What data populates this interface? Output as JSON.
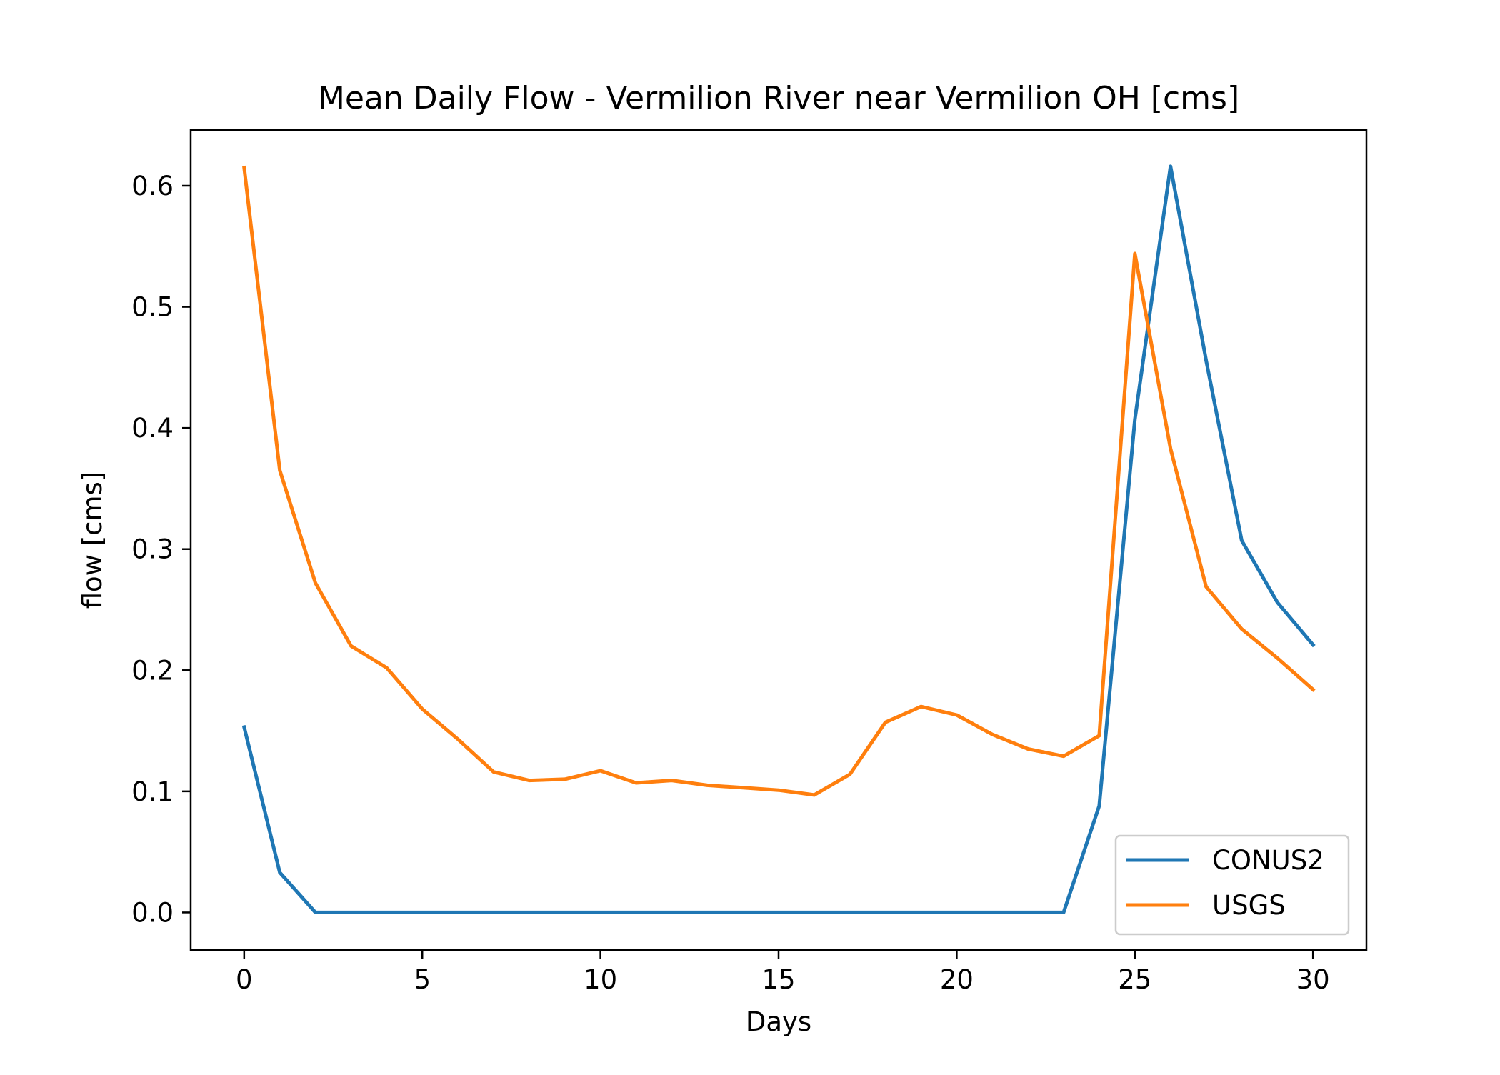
{
  "chart_data": {
    "type": "line",
    "title": "Mean Daily Flow - Vermilion River near Vermilion OH [cms]",
    "xlabel": "Days",
    "ylabel": "flow [cms]",
    "xlim": [
      -1.5,
      31.5
    ],
    "ylim": [
      -0.031,
      0.646
    ],
    "xticks": [
      0,
      5,
      10,
      15,
      20,
      25,
      30
    ],
    "xtick_labels": [
      "0",
      "5",
      "10",
      "15",
      "20",
      "25",
      "30"
    ],
    "yticks": [
      0.0,
      0.1,
      0.2,
      0.3,
      0.4,
      0.5,
      0.6
    ],
    "ytick_labels": [
      "0.0",
      "0.1",
      "0.2",
      "0.3",
      "0.4",
      "0.5",
      "0.6"
    ],
    "grid": false,
    "legend_position": "lower-right",
    "x": [
      0,
      1,
      2,
      3,
      4,
      5,
      6,
      7,
      8,
      9,
      10,
      11,
      12,
      13,
      14,
      15,
      16,
      17,
      18,
      19,
      20,
      21,
      22,
      23,
      24,
      25,
      26,
      27,
      28,
      29,
      30
    ],
    "series": [
      {
        "name": "CONUS2",
        "color": "#1f77b4",
        "values": [
          0.153,
          0.033,
          0.0,
          0.0,
          0.0,
          0.0,
          0.0,
          0.0,
          0.0,
          0.0,
          0.0,
          0.0,
          0.0,
          0.0,
          0.0,
          0.0,
          0.0,
          0.0,
          0.0,
          0.0,
          0.0,
          0.0,
          0.0,
          0.0,
          0.088,
          0.407,
          0.616,
          0.456,
          0.307,
          0.256,
          0.221
        ]
      },
      {
        "name": "USGS",
        "color": "#ff7f0e",
        "values": [
          0.615,
          0.365,
          0.272,
          0.22,
          0.202,
          0.168,
          0.143,
          0.116,
          0.109,
          0.11,
          0.117,
          0.107,
          0.109,
          0.105,
          0.103,
          0.101,
          0.097,
          0.114,
          0.157,
          0.17,
          0.163,
          0.147,
          0.135,
          0.129,
          0.146,
          0.544,
          0.383,
          0.269,
          0.234,
          0.21,
          0.184
        ]
      }
    ]
  }
}
